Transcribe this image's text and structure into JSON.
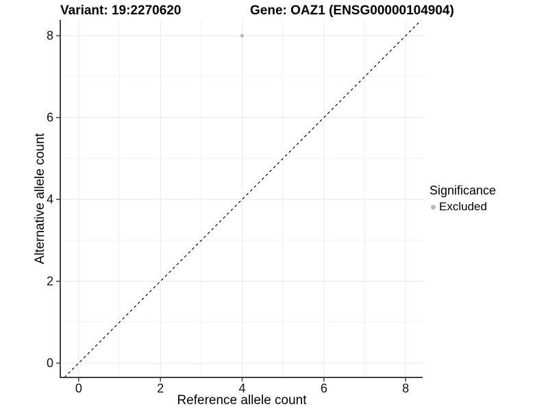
{
  "chart_data": {
    "type": "scatter",
    "titles": {
      "variant": "Variant: 19:2270620",
      "gene": "Gene: OAZ1 (ENSG00000104904)"
    },
    "xlabel": "Reference allele count",
    "ylabel": "Alternative allele count",
    "xlim": [
      -0.45,
      8.45
    ],
    "ylim": [
      -0.35,
      8.37
    ],
    "x_ticks": [
      0,
      2,
      4,
      6,
      8
    ],
    "y_ticks": [
      0,
      2,
      4,
      6,
      8
    ],
    "x_minor_gridlines": [
      1,
      3,
      5,
      7
    ],
    "y_minor_gridlines": [
      1,
      3,
      5,
      7
    ],
    "grid": true,
    "points": [
      {
        "x": 4,
        "y": 8,
        "series": "Excluded"
      }
    ],
    "identity_line": {
      "equation": "y = x",
      "style": "dashed",
      "color": "#000000"
    },
    "legend": {
      "title": "Significance",
      "position": "right",
      "items": [
        {
          "label": "Excluded",
          "color": "#b9b9b9"
        }
      ]
    },
    "colors": {
      "point": "#b9b9b9",
      "major_grid": "#e8e8e8",
      "minor_grid": "#f2f2f2",
      "axis_line": "#404040",
      "tick_label": "#111111",
      "background": "#ffffff"
    }
  }
}
